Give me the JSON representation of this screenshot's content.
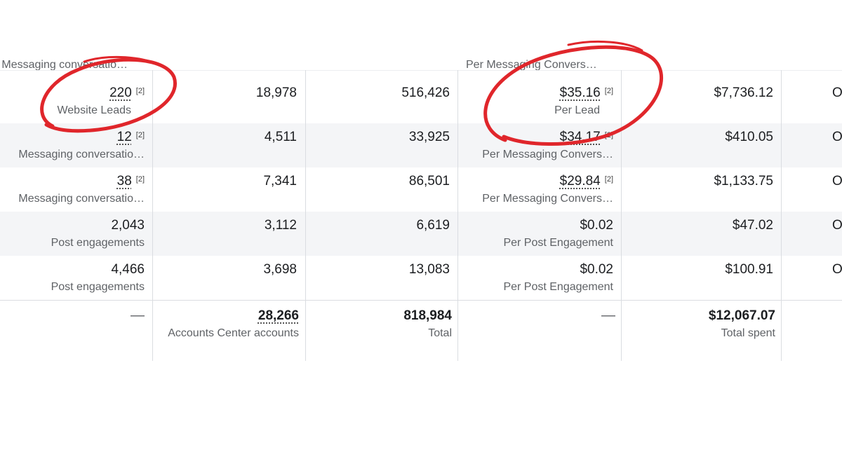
{
  "table": {
    "top_partial": {
      "results_sub": "Messaging conversatio…",
      "cost_sub": "Per Messaging Convers…"
    },
    "rows": [
      {
        "results": "220",
        "results_sup": "[2]",
        "results_sub": "Website Leads",
        "reach": "18,978",
        "impressions": "516,426",
        "cost": "$35.16",
        "cost_sup": "[2]",
        "cost_sub": "Per Lead",
        "spent": "$7,736.12",
        "next": "O"
      },
      {
        "results": "12",
        "results_sup": "[2]",
        "results_sub": "Messaging conversatio…",
        "reach": "4,511",
        "impressions": "33,925",
        "cost": "$34.17",
        "cost_sup": "[2]",
        "cost_sub": "Per Messaging Convers…",
        "spent": "$410.05",
        "next": "O"
      },
      {
        "results": "38",
        "results_sup": "[2]",
        "results_sub": "Messaging conversatio…",
        "reach": "7,341",
        "impressions": "86,501",
        "cost": "$29.84",
        "cost_sup": "[2]",
        "cost_sub": "Per Messaging Convers…",
        "spent": "$1,133.75",
        "next": "O"
      },
      {
        "results": "2,043",
        "results_sub": "Post engagements",
        "reach": "3,112",
        "impressions": "6,619",
        "cost": "$0.02",
        "cost_sub": "Per Post Engagement",
        "spent": "$47.02",
        "next": "O"
      },
      {
        "results": "4,466",
        "results_sub": "Post engagements",
        "reach": "3,698",
        "impressions": "13,083",
        "cost": "$0.02",
        "cost_sub": "Per Post Engagement",
        "spent": "$100.91",
        "next": "O"
      }
    ],
    "totals": {
      "results": "—",
      "reach": "28,266",
      "reach_sub": "Accounts Center accounts",
      "impressions": "818,984",
      "impressions_sub": "Total",
      "cost": "—",
      "spent": "$12,067.07",
      "spent_sub": "Total spent"
    }
  },
  "annotations": {
    "color": "#e0262b",
    "circled": [
      "Website Leads result",
      "Per Lead cost"
    ]
  }
}
